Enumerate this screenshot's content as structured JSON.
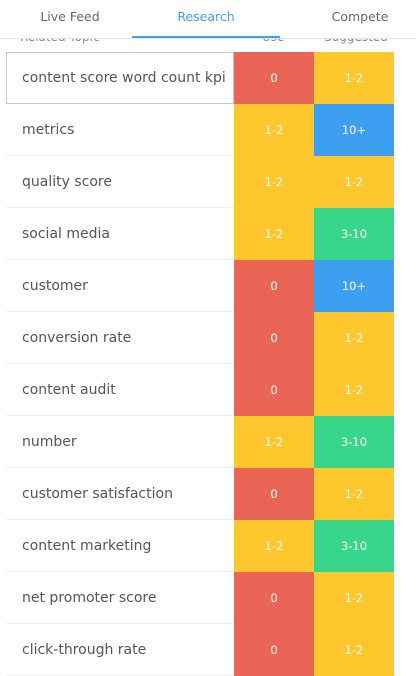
{
  "tabs": [
    "Live Feed",
    "Research",
    "Compete"
  ],
  "active_tab": 1,
  "table": {
    "headers": [
      "Related Topic",
      "Use",
      "Suggested"
    ],
    "rows": [
      {
        "topic": "content score word count kpi",
        "use": "0",
        "use_color": "#ea6555",
        "suggested": "1-2",
        "suggested_color": "#fec72e"
      },
      {
        "topic": "metrics",
        "use": "1-2",
        "use_color": "#fec72e",
        "suggested": "10+",
        "suggested_color": "#3d9ff0"
      },
      {
        "topic": "quality score",
        "use": "1-2",
        "use_color": "#fec72e",
        "suggested": "1-2",
        "suggested_color": "#fec72e"
      },
      {
        "topic": "social media",
        "use": "1-2",
        "use_color": "#fec72e",
        "suggested": "3-10",
        "suggested_color": "#37d68a"
      },
      {
        "topic": "customer",
        "use": "0",
        "use_color": "#ea6555",
        "suggested": "10+",
        "suggested_color": "#3d9ff0"
      },
      {
        "topic": "conversion rate",
        "use": "0",
        "use_color": "#ea6555",
        "suggested": "1-2",
        "suggested_color": "#fec72e"
      },
      {
        "topic": "content audit",
        "use": "0",
        "use_color": "#ea6555",
        "suggested": "1-2",
        "suggested_color": "#fec72e"
      },
      {
        "topic": "number",
        "use": "1-2",
        "use_color": "#fec72e",
        "suggested": "3-10",
        "suggested_color": "#37d68a"
      },
      {
        "topic": "customer satisfaction",
        "use": "0",
        "use_color": "#ea6555",
        "suggested": "1-2",
        "suggested_color": "#fec72e"
      },
      {
        "topic": "content marketing",
        "use": "1-2",
        "use_color": "#fec72e",
        "suggested": "3-10",
        "suggested_color": "#37d68a"
      },
      {
        "topic": "net promoter score",
        "use": "0",
        "use_color": "#ea6555",
        "suggested": "1-2",
        "suggested_color": "#fec72e"
      },
      {
        "topic": "click-through rate",
        "use": "0",
        "use_color": "#ea6555",
        "suggested": "1-2",
        "suggested_color": "#fec72e"
      }
    ]
  }
}
